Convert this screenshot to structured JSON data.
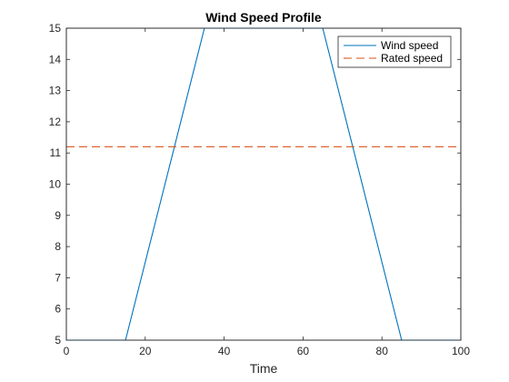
{
  "chart_data": {
    "type": "line",
    "title": "Wind Speed Profile",
    "xlabel": "Time",
    "ylabel": "",
    "xlim": [
      0,
      100
    ],
    "ylim": [
      5,
      15
    ],
    "xticks": [
      0,
      20,
      40,
      60,
      80,
      100
    ],
    "yticks": [
      5,
      6,
      7,
      8,
      9,
      10,
      11,
      12,
      13,
      14,
      15
    ],
    "grid": false,
    "legend_position": "top-right",
    "series": [
      {
        "name": "Wind speed",
        "color": "#0072BD",
        "style": "solid",
        "x": [
          0,
          15,
          35,
          65,
          85,
          100
        ],
        "y": [
          5,
          5,
          15,
          15,
          5,
          5
        ]
      },
      {
        "name": "Rated speed",
        "color": "#D95319",
        "style": "dashed",
        "x": [
          0,
          100
        ],
        "y": [
          11.2,
          11.2
        ]
      }
    ]
  }
}
